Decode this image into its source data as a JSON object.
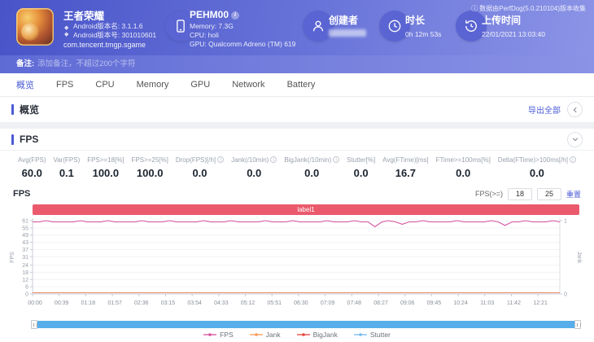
{
  "header": {
    "collect_note": "ⓘ 数据由PerfDog(5.0.210104)版本收集",
    "app": {
      "title": "王者荣耀",
      "version_name": "Android版本名: 3.1.1.6",
      "version_code": "Android版本号: 301010601",
      "package": "com.tencent.tmgp.sgame"
    },
    "device": {
      "name": "PEHM00",
      "memory": "Memory: 7.3G",
      "cpu": "CPU: holi",
      "gpu": "GPU: Qualcomm Adreno (TM) 619"
    },
    "creator": {
      "label": "创建者"
    },
    "duration": {
      "label": "时长",
      "value": "0h 12m 53s"
    },
    "upload": {
      "label": "上传时间",
      "value": "22/01/2021 13:03:40"
    }
  },
  "note_bar": {
    "label": "备注:",
    "placeholder": "添加备注，不超过200个字符"
  },
  "tabs": {
    "items": [
      "概览",
      "FPS",
      "CPU",
      "Memory",
      "GPU",
      "Network",
      "Battery"
    ],
    "active": "概览"
  },
  "overview": {
    "title": "概览",
    "export_label": "导出全部"
  },
  "fps": {
    "title": "FPS",
    "chart_title": "FPS",
    "threshold_label": "FPS(>=)",
    "threshold_low": "18",
    "threshold_high": "25",
    "reset_label": "重置",
    "annotation": "label1",
    "annotation_color": "#ea5a6c",
    "stats": [
      {
        "label": "Avg(FPS)",
        "value": "60.0",
        "info": false
      },
      {
        "label": "Var(FPS)",
        "value": "0.1",
        "info": false
      },
      {
        "label": "FPS>=18[%]",
        "value": "100.0",
        "info": false
      },
      {
        "label": "FPS>=25[%]",
        "value": "100.0",
        "info": false
      },
      {
        "label": "Drop(FPS)[/h]",
        "value": "0.0",
        "info": true
      },
      {
        "label": "Jank(/10min)",
        "value": "0.0",
        "info": true
      },
      {
        "label": "BigJank(/10min)",
        "value": "0.0",
        "info": true
      },
      {
        "label": "Stutter[%]",
        "value": "0.0",
        "info": false
      },
      {
        "label": "Avg(FTime)[ms]",
        "value": "16.7",
        "info": false
      },
      {
        "label": "FTime>=100ms[%]",
        "value": "0.0",
        "info": false
      },
      {
        "label": "Delta(FTime)>100ms[/h]",
        "value": "0.0",
        "info": true
      }
    ]
  },
  "chart_data": {
    "type": "line",
    "title": "FPS",
    "ylabel": "FPS",
    "y2label": "Jank",
    "ylim": [
      0,
      61
    ],
    "y_ticks": [
      0,
      6,
      12,
      18,
      24,
      31,
      37,
      43,
      49,
      55,
      61
    ],
    "y2lim": [
      0,
      1
    ],
    "y2_ticks": [
      0,
      1
    ],
    "grid": true,
    "legend_position": "bottom",
    "x_total_seconds": 773,
    "x_tick_interval_seconds": 39,
    "x_tick_labels": [
      "00:00",
      "00:39",
      "01:18",
      "01:57",
      "02:36",
      "03:15",
      "03:54",
      "04:33",
      "05:12",
      "05:51",
      "06:30",
      "07:09",
      "07:48",
      "08:27",
      "09:06",
      "09:45",
      "10:24",
      "11:03",
      "11:42",
      "12:21"
    ],
    "annotation": "label1",
    "series": [
      {
        "name": "FPS",
        "color": "#d6519e",
        "axis": "left",
        "values": [
          60,
          60,
          61,
          60,
          60,
          60,
          60,
          61,
          60,
          60,
          60,
          61,
          60,
          60,
          60,
          60,
          61,
          60,
          60,
          60,
          61,
          60,
          60,
          60,
          60,
          61,
          60,
          60,
          60,
          61,
          60,
          60,
          60,
          60,
          61,
          60,
          60,
          60,
          61,
          60,
          60,
          60,
          60,
          61,
          60,
          60,
          60,
          61,
          60,
          60,
          56,
          60,
          61,
          60,
          58,
          60,
          60,
          61,
          60,
          60,
          60,
          60,
          61,
          60,
          60,
          60,
          60,
          61,
          60,
          57,
          60,
          60,
          61,
          60,
          60,
          60,
          61,
          60
        ]
      },
      {
        "name": "Jank",
        "color": "#f39a5b",
        "axis": "right",
        "constant": 0
      },
      {
        "name": "BigJank",
        "color": "#e8433f",
        "axis": "right",
        "constant": 0
      },
      {
        "name": "Stutter",
        "color": "#74b9f0",
        "axis": "right",
        "constant": 0
      }
    ]
  }
}
